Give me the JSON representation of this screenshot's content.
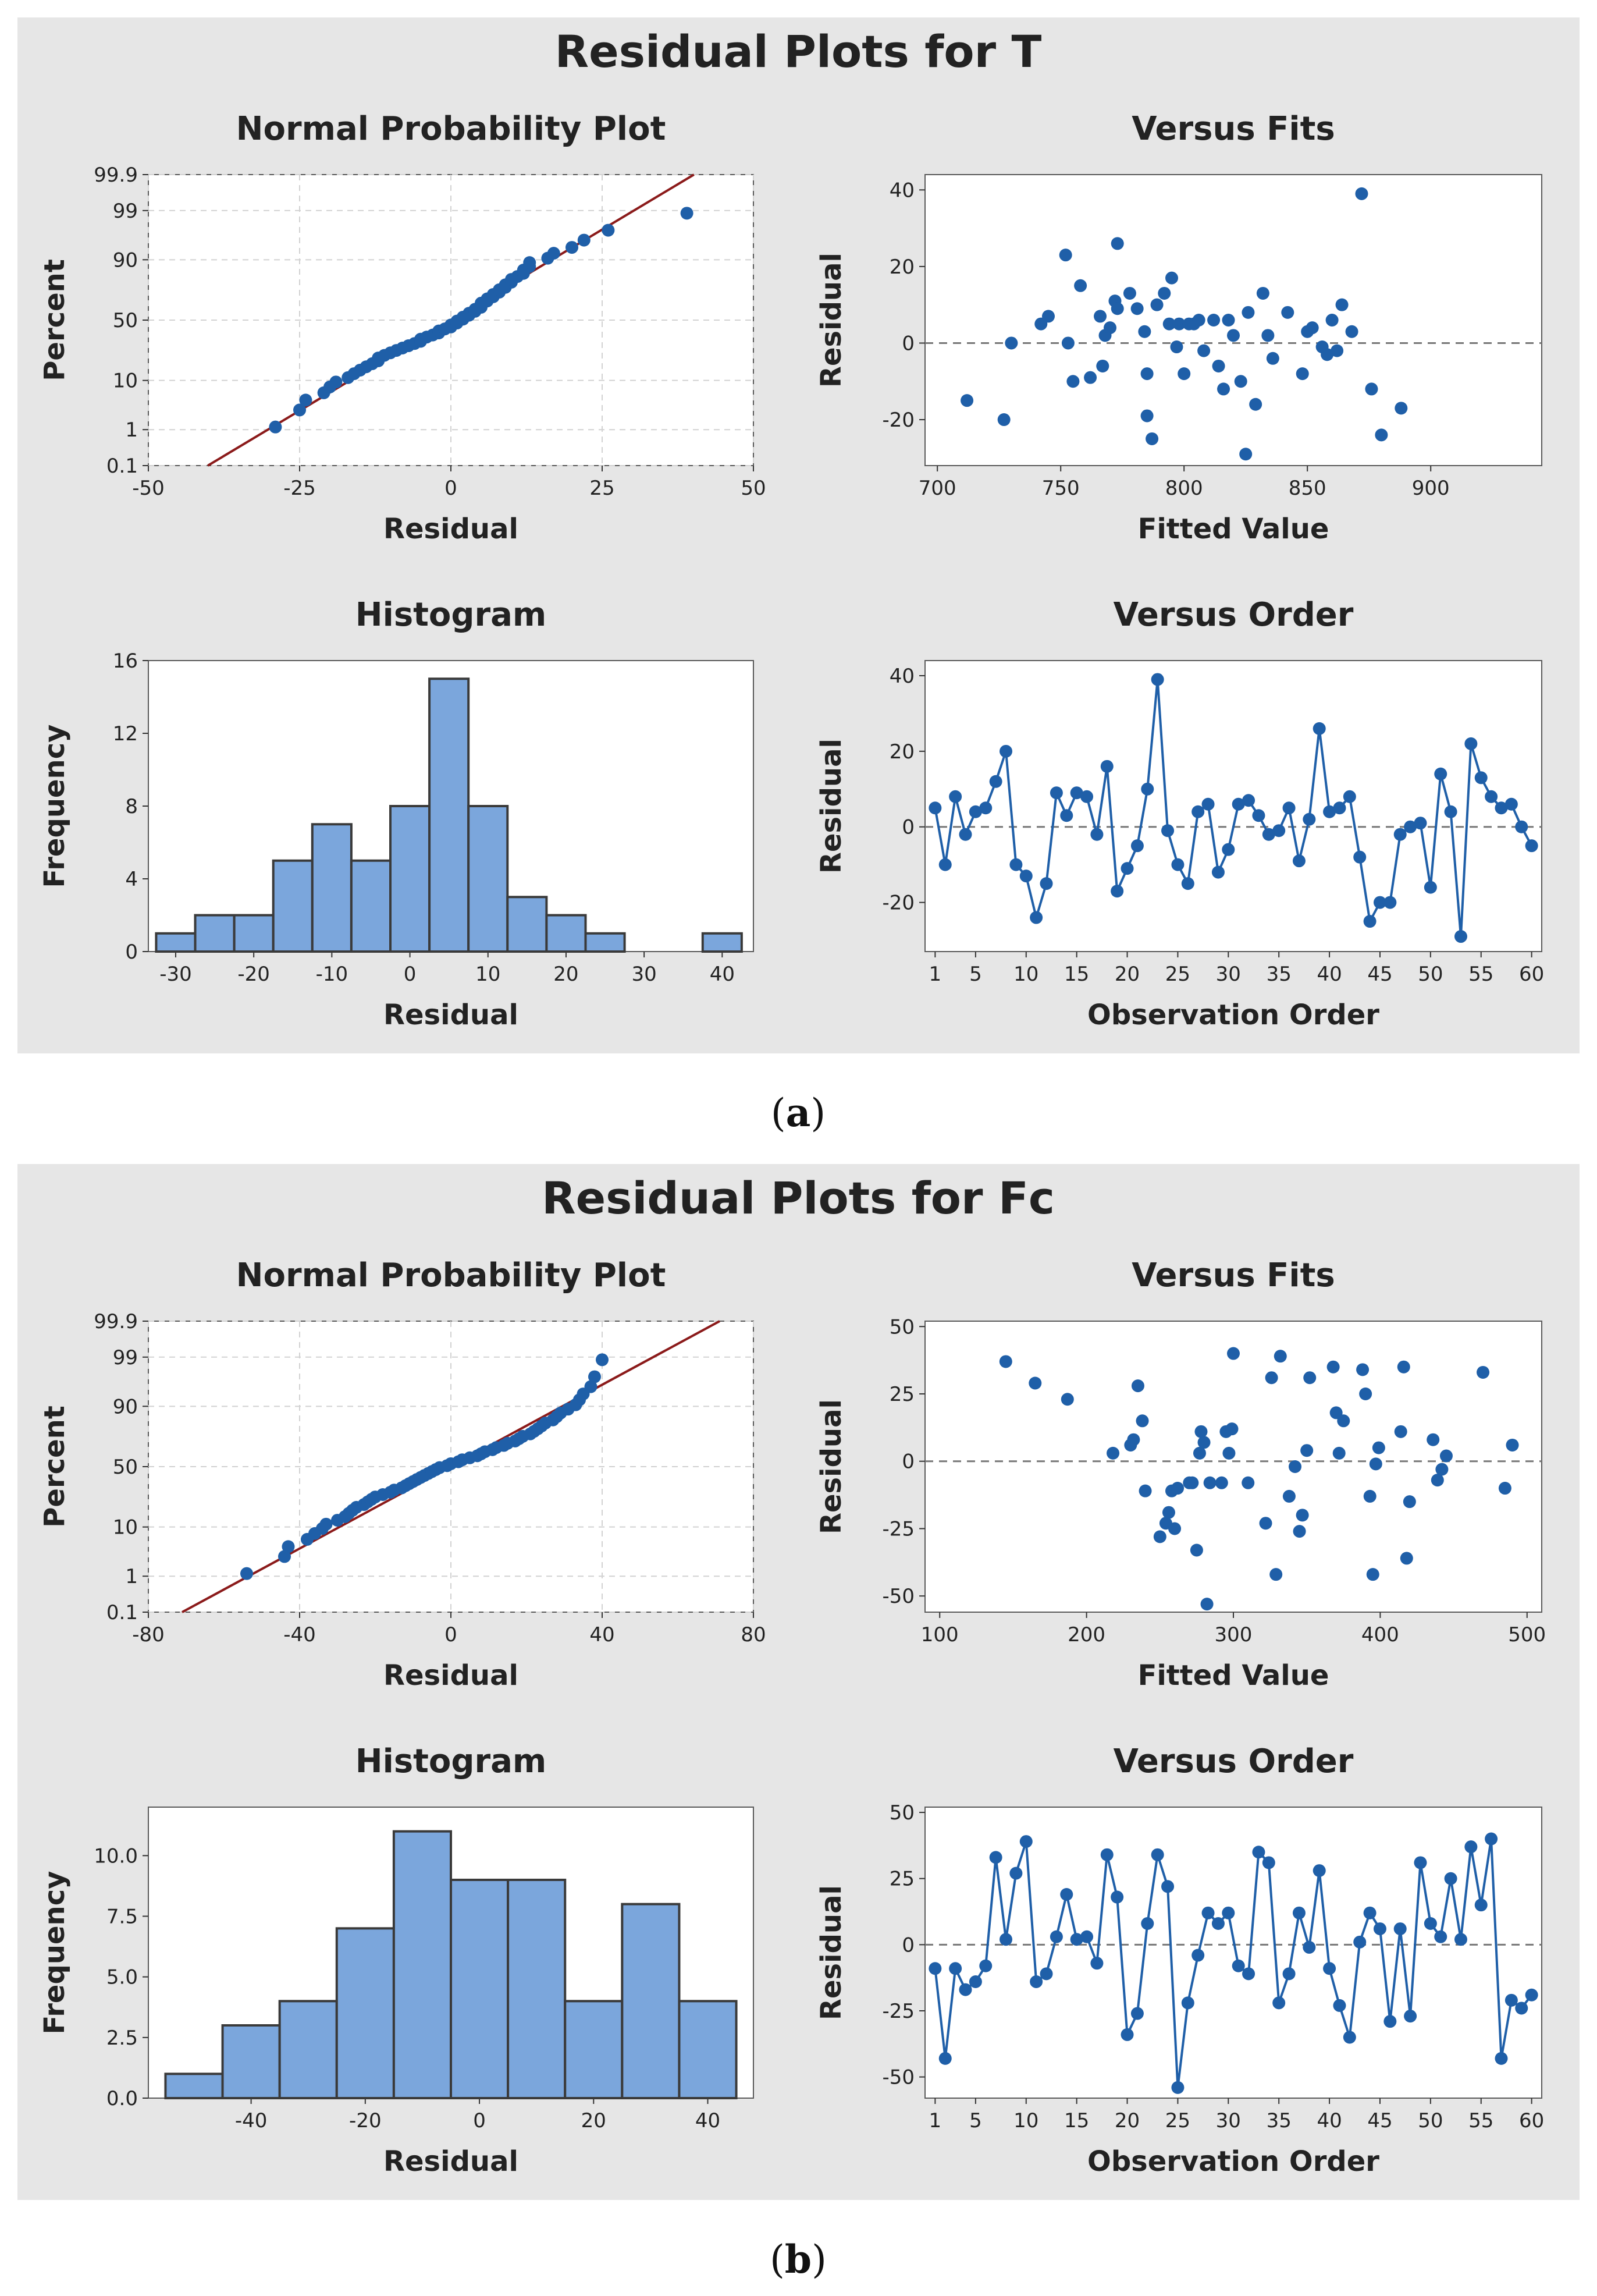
{
  "figure": {
    "colors": {
      "panel_bg": "#e6e6e6",
      "plot_bg": "#ffffff",
      "point": "#1f5fa8",
      "line": "#1f5fa8",
      "fit_line": "#8b1a1a",
      "bar_fill": "#7ba6dc",
      "bar_edge": "#3a3a3a",
      "grid": "#d2d2d2",
      "ref_line": "#777777"
    },
    "parts": [
      {
        "title": "Residual Plots for T",
        "caption_open": "(",
        "caption_letter": "a",
        "caption_close": ")"
      },
      {
        "title": "Residual Plots for Fc",
        "caption_open": "(",
        "caption_letter": "b",
        "caption_close": ")"
      }
    ]
  },
  "chart_data": [
    {
      "panel": "a",
      "position": "top-left",
      "type": "scatter",
      "title": "Normal Probability Plot",
      "xlabel": "Residual",
      "ylabel": "Percent",
      "xlim": [
        -50,
        50
      ],
      "xticks": [
        -50,
        -25,
        0,
        25,
        50
      ],
      "xtick_labels": [
        "-50",
        "-25",
        "0",
        "25",
        "50"
      ],
      "yscale": "normal-probability",
      "ylim": [
        0.1,
        99.9
      ],
      "yticks": [
        0.1,
        1,
        10,
        50,
        90,
        99,
        99.9
      ],
      "ytick_labels": [
        "0.1",
        "1",
        "10",
        "50",
        "90",
        "99",
        "99.9"
      ],
      "grid": true,
      "fit_line": {
        "mean": 0,
        "sd": 13
      },
      "residuals": [
        -29,
        -25,
        -24,
        -21,
        -20,
        -19,
        -17,
        -16,
        -15,
        -14,
        -13,
        -12,
        -12,
        -11,
        -10,
        -9,
        -8,
        -7,
        -6,
        -5,
        -5,
        -4,
        -3,
        -2,
        -2,
        -1,
        0,
        0,
        1,
        1,
        2,
        2,
        3,
        3,
        4,
        4,
        5,
        5,
        5,
        6,
        6,
        7,
        7,
        8,
        8,
        9,
        9,
        10,
        10,
        11,
        12,
        12,
        13,
        13,
        16,
        17,
        20,
        22,
        26,
        39
      ]
    },
    {
      "panel": "a",
      "position": "top-right",
      "type": "scatter",
      "title": "Versus Fits",
      "xlabel": "Fitted Value",
      "ylabel": "Residual",
      "xlim": [
        695,
        945
      ],
      "ylim": [
        -32,
        44
      ],
      "xticks": [
        700,
        750,
        800,
        850,
        900
      ],
      "xtick_labels": [
        "700",
        "750",
        "800",
        "850",
        "900"
      ],
      "yticks": [
        -20,
        0,
        20,
        40
      ],
      "ytick_labels": [
        "-20",
        "0",
        "20",
        "40"
      ],
      "ref_line_y": 0,
      "x": [
        712,
        727,
        730,
        742,
        745,
        752,
        753,
        755,
        758,
        762,
        766,
        767,
        768,
        770,
        772,
        773,
        773,
        778,
        781,
        784,
        785,
        785,
        787,
        789,
        792,
        794,
        795,
        797,
        798,
        800,
        802,
        804,
        806,
        808,
        812,
        814,
        816,
        818,
        820,
        823,
        825,
        826,
        829,
        832,
        834,
        836,
        842,
        848,
        850,
        852,
        856,
        858,
        860,
        862,
        864,
        868,
        872,
        876,
        880,
        888
      ],
      "y": [
        -15,
        -20,
        0,
        5,
        7,
        23,
        0,
        -10,
        15,
        -9,
        7,
        -6,
        2,
        4,
        11,
        26,
        9,
        13,
        9,
        3,
        -8,
        -19,
        -25,
        10,
        13,
        5,
        17,
        -1,
        5,
        -8,
        5,
        5,
        6,
        -2,
        6,
        -6,
        -12,
        6,
        2,
        -10,
        -29,
        8,
        -16,
        13,
        2,
        -4,
        8,
        -8,
        3,
        4,
        -1,
        -3,
        6,
        -2,
        10,
        3,
        39,
        -12,
        -24,
        -17
      ]
    },
    {
      "panel": "a",
      "position": "bottom-left",
      "type": "bar",
      "title": "Histogram",
      "xlabel": "Residual",
      "ylabel": "Frequency",
      "bin_edges": [
        -32.5,
        -27.5,
        -22.5,
        -17.5,
        -12.5,
        -7.5,
        -2.5,
        2.5,
        7.5,
        12.5,
        17.5,
        22.5,
        27.5,
        32.5,
        37.5,
        42.5
      ],
      "values": [
        1,
        2,
        2,
        5,
        7,
        5,
        8,
        15,
        8,
        3,
        2,
        1,
        0,
        0,
        1
      ],
      "xlim": [
        -33.5,
        44
      ],
      "ylim": [
        0,
        16
      ],
      "xticks": [
        -30,
        -20,
        -10,
        0,
        10,
        20,
        30,
        40
      ],
      "xtick_labels": [
        "-30",
        "-20",
        "-10",
        "0",
        "10",
        "20",
        "30",
        "40"
      ],
      "yticks": [
        0,
        4,
        8,
        12,
        16
      ],
      "ytick_labels": [
        "0",
        "4",
        "8",
        "12",
        "16"
      ]
    },
    {
      "panel": "a",
      "position": "bottom-right",
      "type": "line",
      "title": "Versus Order",
      "xlabel": "Observation Order",
      "ylabel": "Residual",
      "xlim": [
        0,
        61
      ],
      "ylim": [
        -33,
        44
      ],
      "xticks": [
        1,
        5,
        10,
        15,
        20,
        25,
        30,
        35,
        40,
        45,
        50,
        55,
        60
      ],
      "xtick_labels": [
        "1",
        "5",
        "10",
        "15",
        "20",
        "25",
        "30",
        "35",
        "40",
        "45",
        "50",
        "55",
        "60"
      ],
      "yticks": [
        -20,
        0,
        20,
        40
      ],
      "ytick_labels": [
        "-20",
        "0",
        "20",
        "40"
      ],
      "ref_line_y": 0,
      "values": [
        5,
        -10,
        8,
        -2,
        4,
        5,
        12,
        20,
        -10,
        -13,
        -24,
        -15,
        9,
        3,
        9,
        8,
        -2,
        16,
        -17,
        -11,
        -5,
        10,
        39,
        -1,
        -10,
        -15,
        4,
        6,
        -12,
        -6,
        6,
        7,
        3,
        -2,
        -1,
        5,
        -9,
        2,
        26,
        4,
        5,
        8,
        -8,
        -25,
        -20,
        -20,
        -2,
        0,
        1,
        -16,
        14,
        4,
        -29,
        22,
        13,
        8,
        5,
        6,
        0,
        -5
      ]
    },
    {
      "panel": "b",
      "position": "top-left",
      "type": "scatter",
      "title": "Normal Probability Plot",
      "xlabel": "Residual",
      "ylabel": "Percent",
      "xlim": [
        -80,
        80
      ],
      "xticks": [
        -80,
        -40,
        0,
        40,
        80
      ],
      "xtick_labels": [
        "-80",
        "-40",
        "0",
        "40",
        "80"
      ],
      "yscale": "normal-probability",
      "ylim": [
        0.1,
        99.9
      ],
      "yticks": [
        0.1,
        1,
        10,
        50,
        90,
        99,
        99.9
      ],
      "ytick_labels": [
        "0.1",
        "1",
        "10",
        "50",
        "90",
        "99",
        "99.9"
      ],
      "grid": true,
      "fit_line": {
        "mean": 0,
        "sd": 23
      },
      "residuals": [
        -54,
        -44,
        -43,
        -38,
        -36,
        -34,
        -33,
        -30,
        -28,
        -27,
        -26,
        -25,
        -23,
        -22,
        -21,
        -20,
        -18,
        -16,
        -15,
        -13,
        -12,
        -11,
        -10,
        -9,
        -8,
        -7,
        -6,
        -5,
        -4,
        -3,
        -1,
        0,
        2,
        3,
        5,
        7,
        8,
        9,
        11,
        12,
        14,
        15,
        17,
        18,
        19,
        21,
        22,
        23,
        24,
        25,
        27,
        28,
        29,
        31,
        33,
        34,
        35,
        37,
        38,
        40
      ]
    },
    {
      "panel": "b",
      "position": "top-right",
      "type": "scatter",
      "title": "Versus Fits",
      "xlabel": "Fitted Value",
      "ylabel": "Residual",
      "xlim": [
        90,
        510
      ],
      "ylim": [
        -56,
        52
      ],
      "xticks": [
        100,
        200,
        300,
        400,
        500
      ],
      "xtick_labels": [
        "100",
        "200",
        "300",
        "400",
        "500"
      ],
      "yticks": [
        -50,
        -25,
        0,
        25,
        50
      ],
      "ytick_labels": [
        "-50",
        "-25",
        "0",
        "25",
        "50"
      ],
      "ref_line_y": 0,
      "x": [
        145,
        165,
        187,
        218,
        230,
        232,
        235,
        238,
        240,
        250,
        254,
        256,
        258,
        260,
        262,
        270,
        272,
        275,
        277,
        278,
        280,
        282,
        284,
        292,
        295,
        297,
        299,
        300,
        310,
        322,
        326,
        329,
        332,
        338,
        342,
        345,
        347,
        350,
        352,
        368,
        370,
        372,
        388,
        390,
        393,
        395,
        397,
        399,
        414,
        416,
        418,
        420,
        436,
        439,
        442,
        445,
        470,
        485,
        490,
        375
      ],
      "y": [
        37,
        29,
        23,
        3,
        6,
        8,
        28,
        15,
        -11,
        -28,
        -23,
        -19,
        -11,
        -25,
        -10,
        -8,
        -8,
        -33,
        3,
        11,
        7,
        -53,
        -8,
        -8,
        11,
        3,
        12,
        40,
        -8,
        -23,
        31,
        -42,
        39,
        -13,
        -2,
        -26,
        -20,
        4,
        31,
        35,
        18,
        3,
        34,
        25,
        -13,
        -42,
        -1,
        5,
        11,
        35,
        -36,
        -15,
        8,
        -7,
        -3,
        2,
        33,
        -10,
        6,
        15
      ]
    },
    {
      "panel": "b",
      "position": "bottom-left",
      "type": "bar",
      "title": "Histogram",
      "xlabel": "Residual",
      "ylabel": "Frequency",
      "bin_edges": [
        -55,
        -45,
        -35,
        -25,
        -15,
        -5,
        5,
        15,
        25,
        35,
        45
      ],
      "values": [
        1,
        3,
        4,
        7,
        11,
        9,
        9,
        4,
        8,
        4
      ],
      "xlim": [
        -58,
        48
      ],
      "ylim": [
        0,
        12
      ],
      "xticks": [
        -40,
        -20,
        0,
        20,
        40
      ],
      "xtick_labels": [
        "-40",
        "-20",
        "0",
        "20",
        "40"
      ],
      "yticks": [
        0,
        2.5,
        5,
        7.5,
        10
      ],
      "ytick_labels": [
        "0.0",
        "2.5",
        "5.0",
        "7.5",
        "10.0"
      ]
    },
    {
      "panel": "b",
      "position": "bottom-right",
      "type": "line",
      "title": "Versus Order",
      "xlabel": "Observation Order",
      "ylabel": "Residual",
      "xlim": [
        0,
        61
      ],
      "ylim": [
        -58,
        52
      ],
      "xticks": [
        1,
        5,
        10,
        15,
        20,
        25,
        30,
        35,
        40,
        45,
        50,
        55,
        60
      ],
      "xtick_labels": [
        "1",
        "5",
        "10",
        "15",
        "20",
        "25",
        "30",
        "35",
        "40",
        "45",
        "50",
        "55",
        "60"
      ],
      "yticks": [
        -50,
        -25,
        0,
        25,
        50
      ],
      "ytick_labels": [
        "-50",
        "-25",
        "0",
        "25",
        "50"
      ],
      "ref_line_y": 0,
      "values": [
        -9,
        -43,
        -9,
        -17,
        -14,
        -8,
        33,
        2,
        27,
        39,
        -14,
        -11,
        3,
        19,
        2,
        3,
        -7,
        34,
        18,
        -34,
        -26,
        8,
        34,
        22,
        -54,
        -22,
        -4,
        12,
        8,
        12,
        -8,
        -11,
        35,
        31,
        -22,
        -11,
        12,
        -1,
        28,
        -9,
        -23,
        -35,
        1,
        12,
        6,
        -29,
        6,
        -27,
        31,
        8,
        3,
        25,
        2,
        37,
        15,
        40,
        -43,
        -21,
        -24,
        -19
      ]
    }
  ]
}
